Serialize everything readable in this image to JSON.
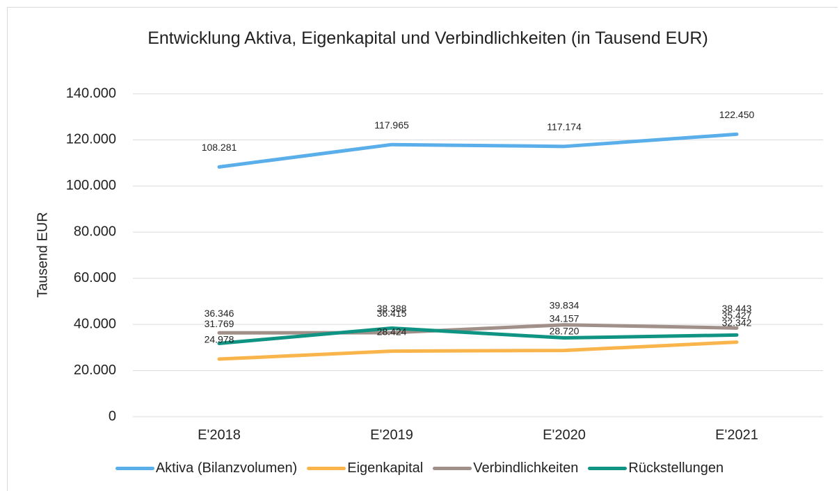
{
  "chart_data": {
    "type": "line",
    "title": "Entwicklung Aktiva, Eigenkapital und Verbindlichkeiten (in Tausend EUR)",
    "y_label": "Tausend EUR",
    "categories": [
      "E'2018",
      "E'2019",
      "E'2020",
      "E'2021"
    ],
    "ylim": [
      0,
      140000
    ],
    "yticks": [
      0,
      {
        "value": 20000,
        "label": "20.000"
      },
      {
        "value": 40000,
        "label": "40.000"
      },
      {
        "value": 60000,
        "label": "60.000"
      },
      {
        "value": 80000,
        "label": "80.000"
      },
      {
        "value": 100000,
        "label": "100.000"
      },
      {
        "value": 120000,
        "label": "120.000"
      },
      {
        "value": 140000,
        "label": "140.000"
      }
    ],
    "grid": true,
    "legend": "bottom",
    "series": [
      {
        "name": "Aktiva (Bilanzvolumen)",
        "color": "#5aaeea",
        "values": [
          108281,
          117965,
          117174,
          122450
        ],
        "value_labels": [
          "108.281",
          "117.965",
          "117.174",
          "122.450"
        ]
      },
      {
        "name": "Eigenkapital",
        "color": "#f9b54b",
        "values": [
          24978,
          28424,
          28720,
          32342
        ],
        "value_labels": [
          "24.978",
          "28.424",
          "28.720",
          "32.342"
        ]
      },
      {
        "name": "Verbindlichkeiten",
        "color": "#a09089",
        "values": [
          36346,
          36415,
          39834,
          38443
        ],
        "value_labels": [
          "36.346",
          "36.415",
          "39.834",
          "38.443"
        ]
      },
      {
        "name": "Rückstellungen",
        "color": "#0f9483",
        "values": [
          31769,
          38388,
          34157,
          35427
        ],
        "value_labels": [
          "31.769",
          "38.388",
          "34.157",
          "35.427"
        ]
      }
    ]
  }
}
